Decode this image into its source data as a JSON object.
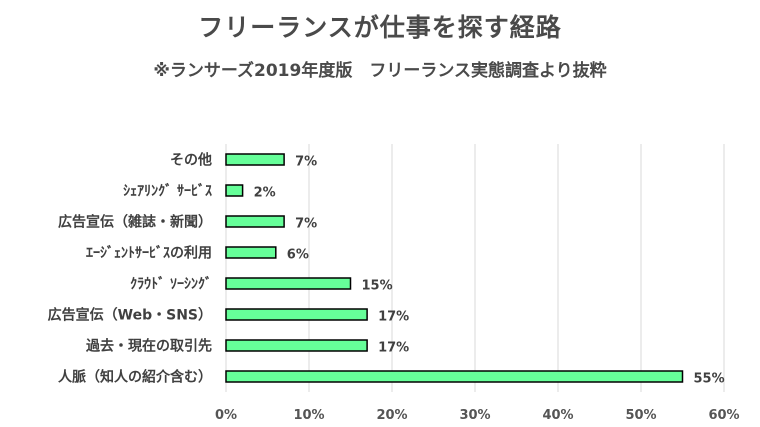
{
  "chart_data": {
    "type": "bar",
    "orientation": "horizontal",
    "title": "フリーランスが仕事を探す経路",
    "subtitle": "※ランサーズ2019年度版　フリーランス実態調査より抜粋",
    "categories": [
      "その他",
      "ｼｪｱﾘﾝｸﾞ ｻｰﾋﾞｽ",
      "広告宣伝（雑誌・新聞）",
      "ｴｰｼﾞｪﾝﾄｻｰﾋﾞｽの利用",
      "ｸﾗｳﾄﾞ ｿｰｼﾝｸﾞ",
      "広告宣伝（Web・SNS）",
      "過去・現在の取引先",
      "人脈（知人の紹介含む）"
    ],
    "values": [
      7,
      2,
      7,
      6,
      15,
      17,
      17,
      55
    ],
    "data_labels": [
      "7%",
      "2%",
      "7%",
      "6%",
      "15%",
      "17%",
      "17%",
      "55%"
    ],
    "xlim": [
      0,
      60
    ],
    "x_ticks": [
      "0%",
      "10%",
      "20%",
      "30%",
      "40%",
      "50%",
      "60%"
    ],
    "grid": true,
    "bar_color": "#66ff99",
    "bar_edge_color": "#000000",
    "grid_color": "#d9d9d9"
  }
}
